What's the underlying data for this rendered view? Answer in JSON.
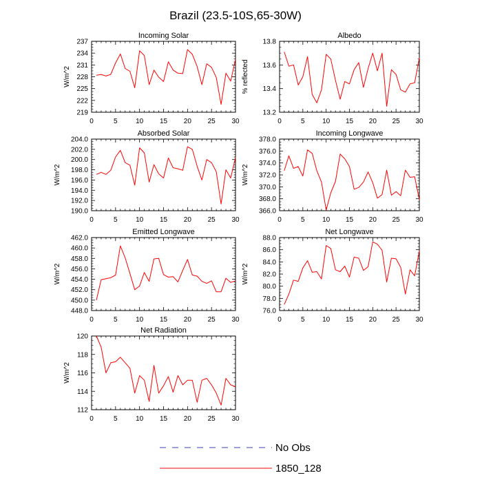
{
  "figure": {
    "title": "Brazil (23.5-10S,65-30W)",
    "legend": [
      {
        "label": "No Obs",
        "color": "#3b3bb3",
        "dash": true
      },
      {
        "label": "1850_128",
        "color": "#ff0000",
        "dash": false
      }
    ]
  },
  "chart_data": [
    {
      "type": "line",
      "title": "Incoming Solar",
      "ylabel": "W/m^2",
      "xlim": [
        0,
        30
      ],
      "ylim": [
        219,
        237
      ],
      "xticks": [
        "0",
        "5",
        "10",
        "15",
        "20",
        "25",
        "30"
      ],
      "yticks": [
        "237",
        "234",
        "231",
        "228",
        "225",
        "222",
        "219"
      ],
      "ytick_values": [
        237,
        234,
        231,
        228,
        225,
        222,
        219
      ],
      "series": [
        {
          "name": "1850_128",
          "color": "#ff0000",
          "x": [
            1,
            2,
            3,
            4,
            5,
            6,
            7,
            8,
            9,
            10,
            11,
            12,
            13,
            14,
            15,
            16,
            17,
            18,
            19,
            20,
            21,
            22,
            23,
            24,
            25,
            26,
            27,
            28,
            29,
            30
          ],
          "y": [
            228.4,
            228.6,
            228.2,
            228.6,
            231.5,
            233.8,
            230.1,
            229.4,
            225.2,
            234.6,
            233.4,
            226.0,
            229.7,
            227.9,
            226.8,
            231.8,
            229.7,
            228.9,
            228.8,
            234.9,
            233.7,
            230.6,
            226.0,
            231.3,
            230.4,
            227.8,
            221.0,
            228.9,
            226.9,
            232.4
          ]
        }
      ]
    },
    {
      "type": "line",
      "title": "Albedo",
      "ylabel": "% reflected",
      "xlim": [
        0,
        30
      ],
      "ylim": [
        13.2,
        13.8
      ],
      "xticks": [
        "0",
        "5",
        "10",
        "15",
        "20",
        "25",
        "30"
      ],
      "yticks": [
        "13.8",
        "13.6",
        "13.4",
        "13.2"
      ],
      "ytick_values": [
        13.8,
        13.6,
        13.4,
        13.2
      ],
      "series": [
        {
          "name": "1850_128",
          "color": "#ff0000",
          "x": [
            1,
            2,
            3,
            4,
            5,
            6,
            7,
            8,
            9,
            10,
            11,
            12,
            13,
            14,
            15,
            16,
            17,
            18,
            19,
            20,
            21,
            22,
            23,
            24,
            25,
            26,
            27,
            28,
            29,
            30
          ],
          "y": [
            13.71,
            13.59,
            13.6,
            13.43,
            13.5,
            13.67,
            13.35,
            13.28,
            13.39,
            13.69,
            13.65,
            13.47,
            13.31,
            13.46,
            13.44,
            13.56,
            13.62,
            13.41,
            13.57,
            13.7,
            13.55,
            13.7,
            13.25,
            13.56,
            13.52,
            13.39,
            13.37,
            13.44,
            13.45,
            13.66
          ]
        }
      ]
    },
    {
      "type": "line",
      "title": "Absorbed Solar",
      "ylabel": "W/m^2",
      "xlim": [
        0,
        30
      ],
      "ylim": [
        190,
        204
      ],
      "xticks": [
        "0",
        "5",
        "10",
        "15",
        "20",
        "25",
        "30"
      ],
      "yticks": [
        "204.0",
        "202.0",
        "200.0",
        "198.0",
        "196.0",
        "194.0",
        "192.0",
        "190.0"
      ],
      "ytick_values": [
        204,
        202,
        200,
        198,
        196,
        194,
        192,
        190
      ],
      "series": [
        {
          "name": "1850_128",
          "color": "#ff0000",
          "x": [
            1,
            2,
            3,
            4,
            5,
            6,
            7,
            8,
            9,
            10,
            11,
            12,
            13,
            14,
            15,
            16,
            17,
            18,
            19,
            20,
            21,
            22,
            23,
            24,
            25,
            26,
            27,
            28,
            29,
            30
          ],
          "y": [
            197.1,
            197.5,
            197.1,
            197.9,
            200.5,
            201.8,
            199.4,
            198.9,
            195.0,
            202.3,
            201.3,
            195.6,
            199.0,
            197.2,
            196.4,
            200.3,
            198.4,
            198.2,
            197.9,
            202.5,
            202.0,
            198.7,
            196.0,
            200.0,
            199.4,
            197.6,
            191.3,
            198.0,
            196.4,
            200.4
          ]
        }
      ]
    },
    {
      "type": "line",
      "title": "Incoming Longwave",
      "ylabel": "W/m^2",
      "xlim": [
        0,
        30
      ],
      "ylim": [
        366,
        378
      ],
      "xticks": [
        "0",
        "5",
        "10",
        "15",
        "20",
        "25",
        "30"
      ],
      "yticks": [
        "378.0",
        "376.0",
        "374.0",
        "372.0",
        "370.0",
        "368.0",
        "366.0"
      ],
      "ytick_values": [
        378,
        376,
        374,
        372,
        370,
        368,
        366
      ],
      "series": [
        {
          "name": "1850_128",
          "color": "#ff0000",
          "x": [
            1,
            2,
            3,
            4,
            5,
            6,
            7,
            8,
            9,
            10,
            11,
            12,
            13,
            14,
            15,
            16,
            17,
            18,
            19,
            20,
            21,
            22,
            23,
            24,
            25,
            26,
            27,
            28,
            29,
            30
          ],
          "y": [
            372.7,
            375.2,
            373.1,
            373.4,
            371.8,
            376.2,
            375.6,
            372.7,
            370.8,
            366.1,
            369.0,
            370.9,
            375.5,
            374.7,
            373.4,
            369.6,
            369.9,
            370.8,
            372.5,
            370.7,
            368.1,
            368.7,
            372.8,
            368.6,
            369.2,
            368.5,
            372.8,
            371.6,
            371.7,
            367.8
          ]
        }
      ]
    },
    {
      "type": "line",
      "title": "Emitted Longwave",
      "ylabel": "W/m^2",
      "xlim": [
        0,
        30
      ],
      "ylim": [
        448,
        462
      ],
      "xticks": [
        "0",
        "5",
        "10",
        "15",
        "20",
        "25",
        "30"
      ],
      "yticks": [
        "462.0",
        "460.0",
        "458.0",
        "456.0",
        "454.0",
        "452.0",
        "450.0",
        "448.0"
      ],
      "ytick_values": [
        462,
        460,
        458,
        456,
        454,
        452,
        450,
        448
      ],
      "series": [
        {
          "name": "1850_128",
          "color": "#ff0000",
          "x": [
            1,
            2,
            3,
            4,
            5,
            6,
            7,
            8,
            9,
            10,
            11,
            12,
            13,
            14,
            15,
            16,
            17,
            18,
            19,
            20,
            21,
            22,
            23,
            24,
            25,
            26,
            27,
            28,
            29,
            30
          ],
          "y": [
            450.0,
            453.9,
            454.1,
            454.3,
            454.8,
            460.4,
            458.1,
            455.1,
            452.0,
            452.7,
            455.3,
            453.6,
            457.9,
            458.0,
            454.9,
            454.4,
            454.5,
            453.5,
            455.7,
            457.8,
            454.8,
            454.6,
            453.6,
            453.2,
            453.7,
            451.6,
            451.6,
            454.2,
            453.4,
            453.7
          ]
        }
      ]
    },
    {
      "type": "line",
      "title": "Net Longwave",
      "ylabel": "W/m^2",
      "xlim": [
        0,
        30
      ],
      "ylim": [
        76,
        88
      ],
      "xticks": [
        "0",
        "5",
        "10",
        "15",
        "20",
        "25",
        "30"
      ],
      "yticks": [
        "88.0",
        "86.0",
        "84.0",
        "82.0",
        "80.0",
        "78.0",
        "76.0"
      ],
      "ytick_values": [
        88,
        86,
        84,
        82,
        80,
        78,
        76
      ],
      "series": [
        {
          "name": "1850_128",
          "color": "#ff0000",
          "x": [
            1,
            2,
            3,
            4,
            5,
            6,
            7,
            8,
            9,
            10,
            11,
            12,
            13,
            14,
            15,
            16,
            17,
            18,
            19,
            20,
            21,
            22,
            23,
            24,
            25,
            26,
            27,
            28,
            29,
            30
          ],
          "y": [
            77.0,
            78.7,
            81.0,
            80.8,
            83.0,
            84.2,
            82.3,
            82.4,
            81.2,
            86.7,
            86.2,
            82.7,
            82.4,
            83.3,
            81.5,
            84.8,
            84.6,
            82.6,
            83.2,
            87.3,
            86.9,
            85.9,
            80.7,
            84.6,
            84.5,
            83.1,
            78.7,
            82.7,
            81.7,
            85.8
          ]
        }
      ]
    },
    {
      "type": "line",
      "title": "Net Radiation",
      "ylabel": "W/m^2",
      "xlim": [
        0,
        30
      ],
      "ylim": [
        112,
        120
      ],
      "xticks": [
        "0",
        "5",
        "10",
        "15",
        "20",
        "25",
        "30"
      ],
      "yticks": [
        "120",
        "118",
        "116",
        "114",
        "112"
      ],
      "ytick_values": [
        120,
        118,
        116,
        114,
        112
      ],
      "series": [
        {
          "name": "1850_128",
          "color": "#ff0000",
          "x": [
            1,
            2,
            3,
            4,
            5,
            6,
            7,
            8,
            9,
            10,
            11,
            12,
            13,
            14,
            15,
            16,
            17,
            18,
            19,
            20,
            21,
            22,
            23,
            24,
            25,
            26,
            27,
            28,
            29,
            30
          ],
          "y": [
            120.0,
            118.8,
            116.0,
            117.1,
            117.2,
            117.7,
            117.1,
            116.5,
            113.8,
            115.7,
            115.2,
            112.9,
            116.8,
            113.8,
            114.6,
            115.6,
            113.9,
            115.7,
            114.7,
            115.2,
            115.2,
            112.8,
            115.2,
            115.4,
            114.7,
            113.8,
            112.5,
            115.4,
            114.7,
            114.5
          ]
        }
      ]
    }
  ]
}
